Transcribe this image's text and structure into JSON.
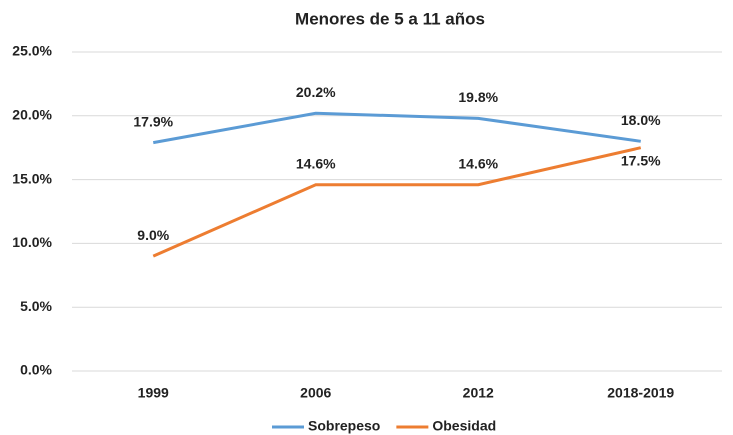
{
  "chart_data": {
    "type": "line",
    "title": "Menores de 5 a 11 años",
    "categories": [
      "1999",
      "2006",
      "2012",
      "2018-2019"
    ],
    "series": [
      {
        "name": "Sobrepeso",
        "color": "#5b9bd5",
        "values": [
          17.9,
          20.2,
          19.8,
          18.0
        ],
        "value_labels": [
          "17.9%",
          "20.2%",
          "19.8%",
          "18.0%"
        ]
      },
      {
        "name": "Obesidad",
        "color": "#ed7d31",
        "values": [
          9.0,
          14.6,
          14.6,
          17.5
        ],
        "value_labels": [
          "9.0%",
          "14.6%",
          "14.6%",
          "17.5%"
        ]
      }
    ],
    "ylim": [
      0,
      25
    ],
    "yticks": [
      {
        "value": 0,
        "label": "0.0%"
      },
      {
        "value": 5,
        "label": "5.0%"
      },
      {
        "value": 10,
        "label": "10.0%"
      },
      {
        "value": 15,
        "label": "15.0%"
      },
      {
        "value": 20,
        "label": "20.0%"
      },
      {
        "value": 25,
        "label": "25.0%"
      }
    ],
    "grid": true,
    "legend": "bottom"
  }
}
